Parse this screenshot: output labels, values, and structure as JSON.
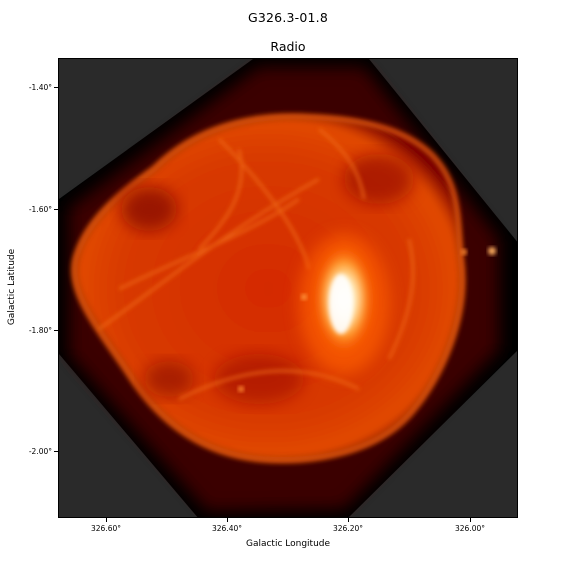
{
  "figure": {
    "title": "G326.3-01.8",
    "panel_title": "Radio"
  },
  "axes": {
    "xlabel": "Galactic Longitude",
    "ylabel": "Galactic Latitude",
    "xticks": [
      "326.60°",
      "326.40°",
      "326.20°",
      "326.00°"
    ],
    "yticks": [
      "-1.40°",
      "-1.60°",
      "-1.80°",
      "-2.00°"
    ]
  },
  "image": {
    "colormap": "hot",
    "background_color": "#2a2a2a",
    "mosaic_border_color": "#000000"
  }
}
